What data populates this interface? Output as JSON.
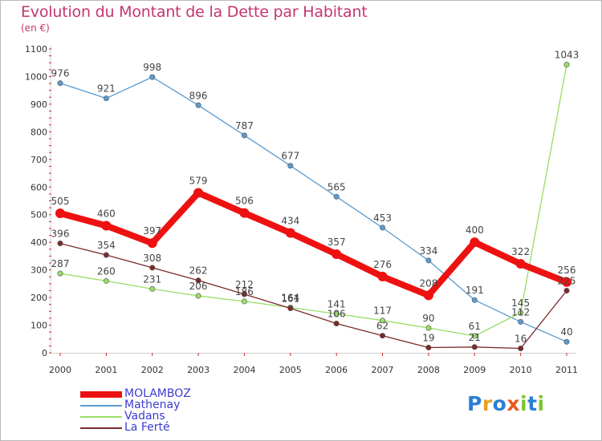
{
  "title": "Evolution du Montant de la Dette par Habitant",
  "subtitle": "(en €)",
  "logo": {
    "text": "Proxiti",
    "letters": [
      {
        "ch": "P",
        "color": "#2a7fd4"
      },
      {
        "ch": "r",
        "color": "#e8a020"
      },
      {
        "ch": "o",
        "color": "#2a7fd4"
      },
      {
        "ch": "x",
        "color": "#e85a20"
      },
      {
        "ch": "i",
        "color": "#7cc432"
      },
      {
        "ch": "t",
        "color": "#2a7fd4"
      },
      {
        "ch": "i",
        "color": "#7cc432"
      }
    ]
  },
  "chart_data": {
    "type": "line",
    "title": "Evolution du Montant de la Dette par Habitant",
    "subtitle": "(en €)",
    "x": [
      "2000",
      "2001",
      "2002",
      "2003",
      "2004",
      "2005",
      "2006",
      "2007",
      "2008",
      "2009",
      "2010",
      "2011"
    ],
    "ylim": [
      0,
      1100
    ],
    "yticks": [
      0,
      100,
      200,
      300,
      400,
      500,
      600,
      700,
      800,
      900,
      1000,
      1100
    ],
    "grid": false,
    "legend_position": "bottom-left",
    "series": [
      {
        "name": "MOLAMBOZ",
        "color": "#ee1111",
        "emphasis": true,
        "values": [
          505,
          460,
          397,
          579,
          506,
          434,
          357,
          276,
          208,
          400,
          322,
          256
        ]
      },
      {
        "name": "Mathenay",
        "color": "#5b9bd0",
        "emphasis": false,
        "values": [
          976,
          921,
          998,
          896,
          787,
          677,
          565,
          453,
          334,
          191,
          112,
          40
        ]
      },
      {
        "name": "Vadans",
        "color": "#99dd66",
        "emphasis": false,
        "values": [
          287,
          260,
          231,
          206,
          186,
          164,
          141,
          117,
          90,
          61,
          145,
          1043
        ]
      },
      {
        "name": "La Ferté",
        "color": "#7a2a2a",
        "emphasis": false,
        "values": [
          396,
          354,
          308,
          262,
          212,
          161,
          106,
          62,
          19,
          21,
          16,
          225
        ]
      }
    ]
  }
}
